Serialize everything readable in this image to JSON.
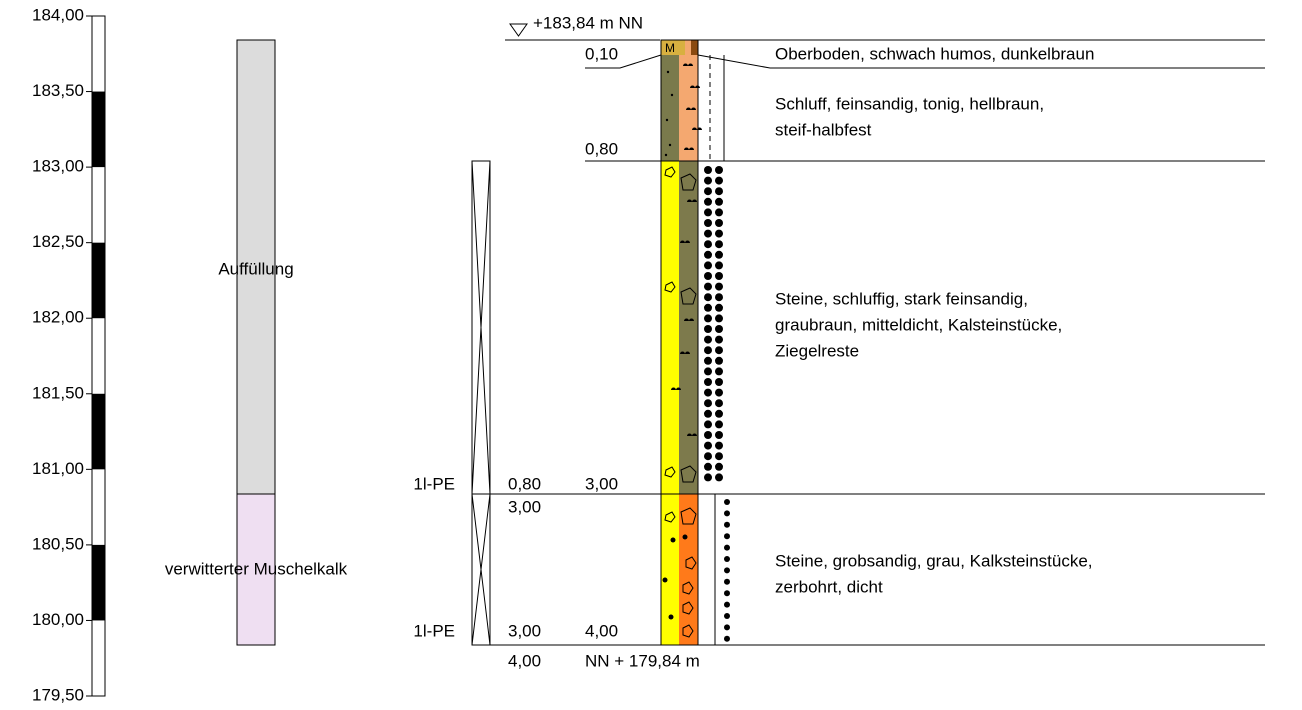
{
  "header": {
    "elevation": "+183,84 m NN"
  },
  "scale": {
    "ticks": [
      "184,00",
      "183,50",
      "183,00",
      "182,50",
      "182,00",
      "181,50",
      "181,00",
      "180,50",
      "180,00",
      "179,50"
    ]
  },
  "stratigraphy": {
    "units": [
      {
        "label": "Auffüllung"
      },
      {
        "label": "verwitterter Muschelkalk"
      }
    ]
  },
  "samples": [
    {
      "label": "1l-PE",
      "top": "0,80",
      "bottom": "3,00"
    },
    {
      "label": "1l-PE",
      "top": "3,00",
      "bottom": "4,00"
    }
  ],
  "layers": [
    {
      "depth": "0,10",
      "description": [
        "Oberboden, schwach humos, dunkelbraun"
      ]
    },
    {
      "depth": "0,80",
      "description": [
        "Schluff, feinsandig, tonig, hellbraun,",
        "steif-halbfest"
      ]
    },
    {
      "depth": "3,00",
      "description": [
        "Steine, schluffig, stark feinsandig,",
        "graubraun, mitteldicht, Kalsteinstücke,",
        "Ziegelreste"
      ]
    },
    {
      "depth": "4,00",
      "description": [
        "Steine, grobsandig, grau, Kalksteinstücke,",
        "zerbohrt, dicht"
      ]
    }
  ],
  "footer": {
    "elevation": "NN + 179,84 m"
  }
}
